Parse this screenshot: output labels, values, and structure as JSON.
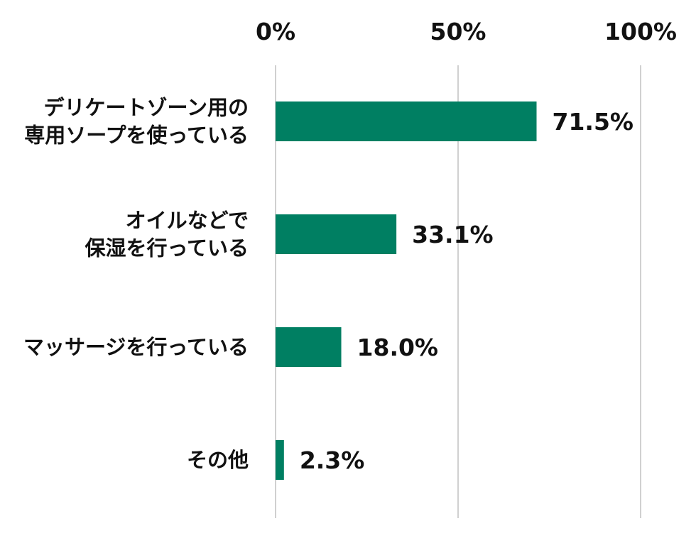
{
  "chart_data": {
    "type": "bar",
    "orientation": "horizontal",
    "categories": [
      [
        "デリケートゾーン用の",
        "専用ソープを使っている"
      ],
      [
        "オイルなどで",
        "保湿を行っている"
      ],
      [
        "マッサージを行っている"
      ],
      [
        "その他"
      ]
    ],
    "values": [
      71.5,
      33.1,
      18.0,
      2.3
    ],
    "value_labels": [
      "71.5%",
      "33.1%",
      "18.0%",
      "2.3%"
    ],
    "x_ticks": [
      0,
      50,
      100
    ],
    "x_tick_labels": [
      "0%",
      "50%",
      "100%"
    ],
    "xlim": [
      0,
      100
    ],
    "axis_position": "top",
    "grid": true,
    "bar_color": "#007f62",
    "gridline_color": "#d0d0d0",
    "text_color": "#111111"
  }
}
